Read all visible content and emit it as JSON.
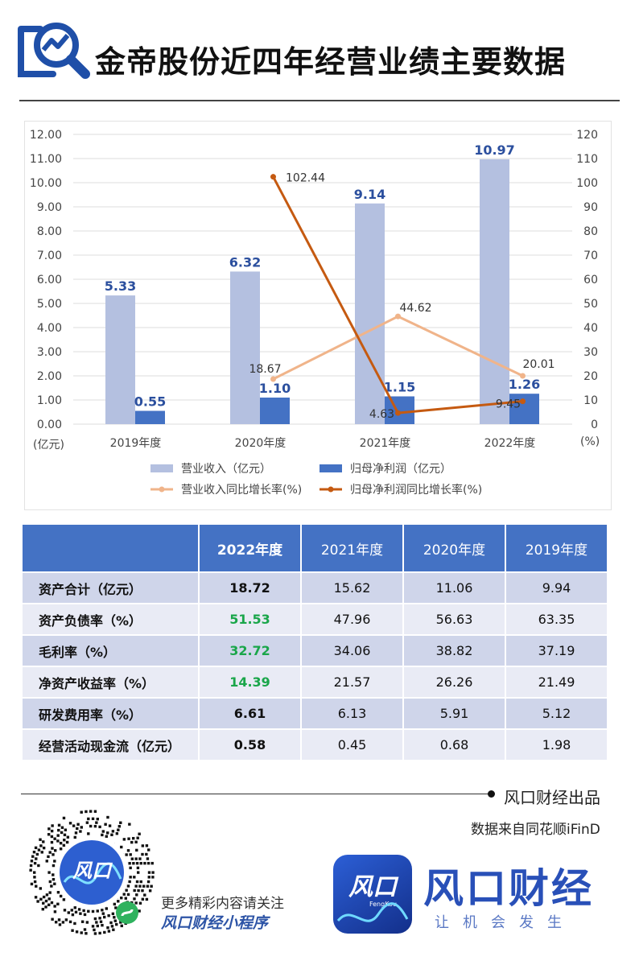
{
  "header": {
    "title": "金帝股份近四年经营业绩主要数据"
  },
  "chart_data": {
    "type": "bar",
    "categories": [
      "2019年度",
      "2020年度",
      "2021年度",
      "2022年度"
    ],
    "series": [
      {
        "name": "营业收入（亿元）",
        "type": "bar",
        "axis": "left",
        "color": "#b4c0e0",
        "values": [
          5.33,
          6.32,
          9.14,
          10.97
        ],
        "labels": [
          "5.33",
          "6.32",
          "9.14",
          "10.97"
        ]
      },
      {
        "name": "归母净利润（亿元）",
        "type": "bar",
        "axis": "left",
        "color": "#4472c4",
        "values": [
          0.55,
          1.1,
          1.15,
          1.26
        ],
        "labels": [
          "0.55",
          "1.10",
          "1.15",
          "1.26"
        ]
      },
      {
        "name": "营业收入同比增长率(%)",
        "type": "line",
        "axis": "right",
        "color": "#f0b48a",
        "values": [
          null,
          18.67,
          44.62,
          20.01
        ],
        "labels": [
          "",
          "18.67",
          "44.62",
          "20.01"
        ]
      },
      {
        "name": "归母净利润同比增长率(%)",
        "type": "line",
        "axis": "right",
        "color": "#c55a11",
        "values": [
          null,
          102.44,
          4.63,
          9.45
        ],
        "labels": [
          "",
          "102.44",
          "4.63",
          "9.45"
        ]
      }
    ],
    "y_left": {
      "label": "(亿元)",
      "range": [
        0,
        12
      ],
      "ticks": [
        "0.00",
        "1.00",
        "2.00",
        "3.00",
        "4.00",
        "5.00",
        "6.00",
        "7.00",
        "8.00",
        "9.00",
        "10.00",
        "11.00",
        "12.00"
      ]
    },
    "y_right": {
      "label": "(%)",
      "range": [
        0,
        120
      ],
      "ticks": [
        "0",
        "10",
        "20",
        "30",
        "40",
        "50",
        "60",
        "70",
        "80",
        "90",
        "100",
        "110",
        "120"
      ]
    },
    "grid": true,
    "legend_position": "bottom"
  },
  "table": {
    "headers": [
      "",
      "2022年度",
      "2021年度",
      "2020年度",
      "2019年度"
    ],
    "rows": [
      {
        "label": "资产合计（亿元）",
        "values": [
          "18.72",
          "15.62",
          "11.06",
          "9.94"
        ],
        "highlight_color": "#111111"
      },
      {
        "label": "资产负债率（%）",
        "values": [
          "51.53",
          "47.96",
          "56.63",
          "63.35"
        ],
        "highlight_color": "#1aa64a"
      },
      {
        "label": "毛利率（%）",
        "values": [
          "32.72",
          "34.06",
          "38.82",
          "37.19"
        ],
        "highlight_color": "#1aa64a"
      },
      {
        "label": "净资产收益率（%）",
        "values": [
          "14.39",
          "21.57",
          "26.26",
          "21.49"
        ],
        "highlight_color": "#1aa64a"
      },
      {
        "label": "研发费用率（%）",
        "values": [
          "6.61",
          "6.13",
          "5.91",
          "5.12"
        ],
        "highlight_color": "#111111"
      },
      {
        "label": "经营活动现金流（亿元）",
        "values": [
          "0.58",
          "0.45",
          "0.68",
          "1.98"
        ],
        "highlight_color": "#111111"
      }
    ]
  },
  "footer": {
    "credit": "风口财经出品",
    "source": "数据来自同花顺iFinD",
    "follow_line1": "更多精彩内容请关注",
    "follow_line2": "风口财经小程序",
    "brand": "风口财经",
    "slogan": "让机会发生",
    "logo_text": "风口",
    "logo_sub": "FengKou"
  },
  "colors": {
    "accent": "#4472c4",
    "brand": "#2950b8",
    "positive": "#1aa64a"
  },
  "icons": [
    "magnifier-chart-icon",
    "qr-code-icon",
    "mini-program-icon",
    "app-logo-icon"
  ]
}
